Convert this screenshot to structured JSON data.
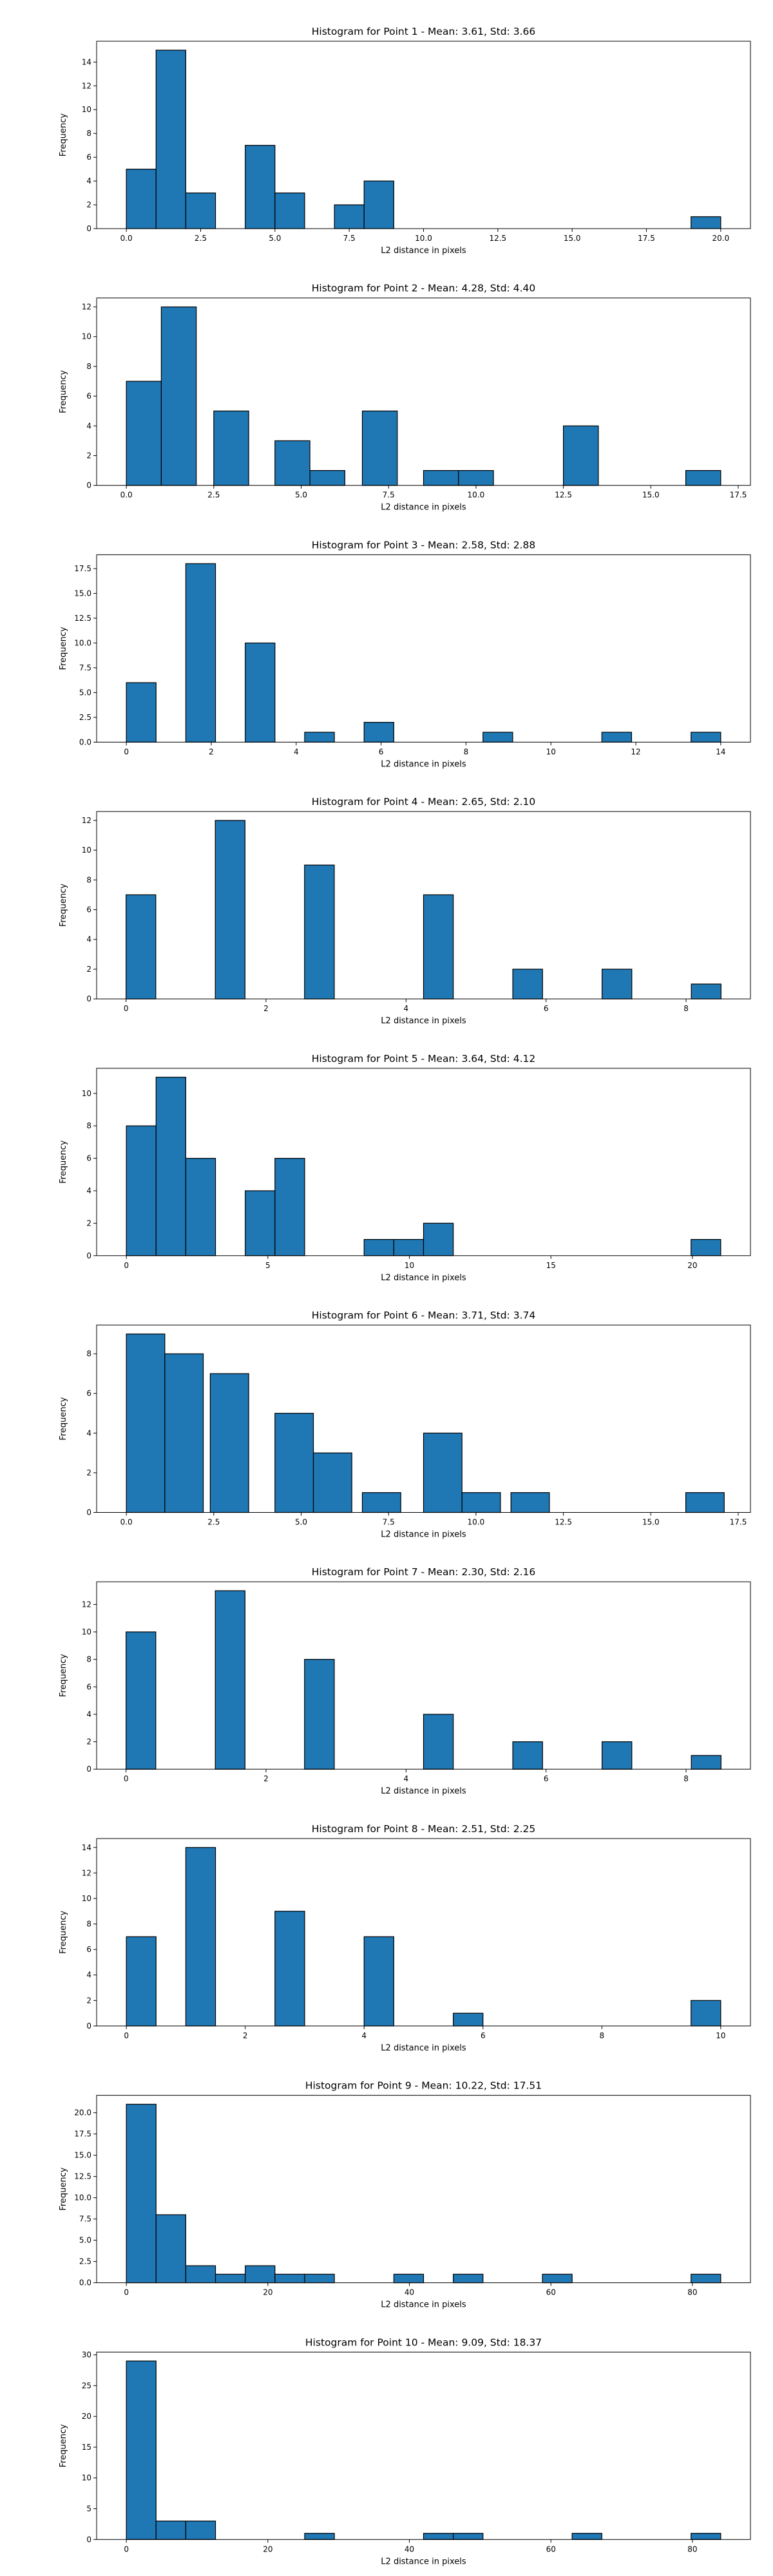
{
  "figure": {
    "bar_color": "#1f77b4",
    "edge_color": "#000000"
  },
  "chart_data": [
    {
      "type": "bar",
      "title": "Histogram for Point 1 - Mean: 3.61, Std: 3.66",
      "xlabel": "L2 distance in pixels",
      "ylabel": "Frequency",
      "xlim": [
        -1,
        21
      ],
      "ylim": [
        0,
        15.75
      ],
      "xticks": [
        0,
        2.5,
        5,
        7.5,
        10,
        12.5,
        15,
        17.5,
        20
      ],
      "xtick_labels": [
        "0.0",
        "2.5",
        "5.0",
        "7.5",
        "10.0",
        "12.5",
        "15.0",
        "17.5",
        "20.0"
      ],
      "yticks": [
        0,
        2,
        4,
        6,
        8,
        10,
        12,
        14
      ],
      "ytick_labels": [
        "0",
        "2",
        "4",
        "6",
        "8",
        "10",
        "12",
        "14"
      ],
      "bins": [
        {
          "x0": 0,
          "x1": 1,
          "count": 5
        },
        {
          "x0": 1,
          "x1": 2,
          "count": 15
        },
        {
          "x0": 2,
          "x1": 3,
          "count": 3
        },
        {
          "x0": 4,
          "x1": 5,
          "count": 7
        },
        {
          "x0": 5,
          "x1": 6,
          "count": 3
        },
        {
          "x0": 7,
          "x1": 8,
          "count": 2
        },
        {
          "x0": 8,
          "x1": 9,
          "count": 4
        },
        {
          "x0": 19,
          "x1": 20,
          "count": 1
        }
      ]
    },
    {
      "type": "bar",
      "title": "Histogram for Point 2 - Mean: 4.28, Std: 4.40",
      "xlabel": "L2 distance in pixels",
      "ylabel": "Frequency",
      "xlim": [
        -0.85,
        17.85
      ],
      "ylim": [
        0,
        12.6
      ],
      "xticks": [
        0,
        2.5,
        5,
        7.5,
        10,
        12.5,
        15,
        17.5
      ],
      "xtick_labels": [
        "0.0",
        "2.5",
        "5.0",
        "7.5",
        "10.0",
        "12.5",
        "15.0",
        "17.5"
      ],
      "yticks": [
        0,
        2,
        4,
        6,
        8,
        10,
        12
      ],
      "ytick_labels": [
        "0",
        "2",
        "4",
        "6",
        "8",
        "10",
        "12"
      ],
      "bins": [
        {
          "x0": 0,
          "x1": 1,
          "count": 7
        },
        {
          "x0": 1,
          "x1": 2,
          "count": 12
        },
        {
          "x0": 2.5,
          "x1": 3.5,
          "count": 5
        },
        {
          "x0": 4.25,
          "x1": 5.25,
          "count": 3
        },
        {
          "x0": 5.25,
          "x1": 6.25,
          "count": 1
        },
        {
          "x0": 6.75,
          "x1": 7.75,
          "count": 5
        },
        {
          "x0": 8.5,
          "x1": 9.5,
          "count": 1
        },
        {
          "x0": 9.5,
          "x1": 10.5,
          "count": 1
        },
        {
          "x0": 12.5,
          "x1": 13.5,
          "count": 4
        },
        {
          "x0": 16,
          "x1": 17,
          "count": 1
        }
      ]
    },
    {
      "type": "bar",
      "title": "Histogram for Point 3 - Mean: 2.58, Std: 2.88",
      "xlabel": "L2 distance in pixels",
      "ylabel": "Frequency",
      "xlim": [
        -0.7,
        14.7
      ],
      "ylim": [
        0,
        18.9
      ],
      "xticks": [
        0,
        2,
        4,
        6,
        8,
        10,
        12,
        14
      ],
      "xtick_labels": [
        "0",
        "2",
        "4",
        "6",
        "8",
        "10",
        "12",
        "14"
      ],
      "yticks": [
        0,
        2.5,
        5,
        7.5,
        10,
        12.5,
        15,
        17.5
      ],
      "ytick_labels": [
        "0.0",
        "2.5",
        "5.0",
        "7.5",
        "10.0",
        "12.5",
        "15.0",
        "17.5"
      ],
      "bins": [
        {
          "x0": 0,
          "x1": 0.7,
          "count": 6
        },
        {
          "x0": 1.4,
          "x1": 2.1,
          "count": 18
        },
        {
          "x0": 2.8,
          "x1": 3.5,
          "count": 10
        },
        {
          "x0": 4.2,
          "x1": 4.9,
          "count": 1
        },
        {
          "x0": 5.6,
          "x1": 6.3,
          "count": 2
        },
        {
          "x0": 8.4,
          "x1": 9.1,
          "count": 1
        },
        {
          "x0": 11.2,
          "x1": 11.9,
          "count": 1
        },
        {
          "x0": 13.3,
          "x1": 14.0,
          "count": 1
        }
      ]
    },
    {
      "type": "bar",
      "title": "Histogram for Point 4 - Mean: 2.65, Std: 2.10",
      "xlabel": "L2 distance in pixels",
      "ylabel": "Frequency",
      "xlim": [
        -0.42,
        8.92
      ],
      "ylim": [
        0,
        12.6
      ],
      "xticks": [
        0,
        2,
        4,
        6,
        8
      ],
      "xtick_labels": [
        "0",
        "2",
        "4",
        "6",
        "8"
      ],
      "yticks": [
        0,
        2,
        4,
        6,
        8,
        10,
        12
      ],
      "ytick_labels": [
        "0",
        "2",
        "4",
        "6",
        "8",
        "10",
        "12"
      ],
      "bins": [
        {
          "x0": 0,
          "x1": 0.425,
          "count": 7
        },
        {
          "x0": 1.275,
          "x1": 1.7,
          "count": 12
        },
        {
          "x0": 2.55,
          "x1": 2.975,
          "count": 9
        },
        {
          "x0": 4.25,
          "x1": 4.675,
          "count": 7
        },
        {
          "x0": 5.525,
          "x1": 5.95,
          "count": 2
        },
        {
          "x0": 6.8,
          "x1": 7.225,
          "count": 2
        },
        {
          "x0": 8.075,
          "x1": 8.5,
          "count": 1
        }
      ]
    },
    {
      "type": "bar",
      "title": "Histogram for Point 5 - Mean: 3.64, Std: 4.12",
      "xlabel": "L2 distance in pixels",
      "ylabel": "Frequency",
      "xlim": [
        -1.05,
        22.05
      ],
      "ylim": [
        0,
        11.55
      ],
      "xticks": [
        0,
        5,
        10,
        15,
        20
      ],
      "xtick_labels": [
        "0",
        "5",
        "10",
        "15",
        "20"
      ],
      "yticks": [
        0,
        2,
        4,
        6,
        8,
        10
      ],
      "ytick_labels": [
        "0",
        "2",
        "4",
        "6",
        "8",
        "10"
      ],
      "bins": [
        {
          "x0": 0,
          "x1": 1.05,
          "count": 8
        },
        {
          "x0": 1.05,
          "x1": 2.1,
          "count": 11
        },
        {
          "x0": 2.1,
          "x1": 3.15,
          "count": 6
        },
        {
          "x0": 4.2,
          "x1": 5.25,
          "count": 4
        },
        {
          "x0": 5.25,
          "x1": 6.3,
          "count": 6
        },
        {
          "x0": 8.4,
          "x1": 9.45,
          "count": 1
        },
        {
          "x0": 9.45,
          "x1": 10.5,
          "count": 1
        },
        {
          "x0": 10.5,
          "x1": 11.55,
          "count": 2
        },
        {
          "x0": 19.95,
          "x1": 21.0,
          "count": 1
        }
      ]
    },
    {
      "type": "bar",
      "title": "Histogram for Point 6 - Mean: 3.71, Std: 3.74",
      "xlabel": "L2 distance in pixels",
      "ylabel": "Frequency",
      "xlim": [
        -0.85,
        17.85
      ],
      "ylim": [
        0,
        9.45
      ],
      "xticks": [
        0,
        2.5,
        5,
        7.5,
        10,
        12.5,
        15,
        17.5
      ],
      "xtick_labels": [
        "0.0",
        "2.5",
        "5.0",
        "7.5",
        "10.0",
        "12.5",
        "15.0",
        "17.5"
      ],
      "yticks": [
        0,
        2,
        4,
        6,
        8
      ],
      "ytick_labels": [
        "0",
        "2",
        "4",
        "6",
        "8"
      ],
      "bins": [
        {
          "x0": 0,
          "x1": 1.1,
          "count": 9
        },
        {
          "x0": 1.1,
          "x1": 2.2,
          "count": 8
        },
        {
          "x0": 2.4,
          "x1": 3.5,
          "count": 7
        },
        {
          "x0": 4.25,
          "x1": 5.35,
          "count": 5
        },
        {
          "x0": 5.35,
          "x1": 6.45,
          "count": 3
        },
        {
          "x0": 6.75,
          "x1": 7.85,
          "count": 1
        },
        {
          "x0": 8.5,
          "x1": 9.6,
          "count": 4
        },
        {
          "x0": 9.6,
          "x1": 10.7,
          "count": 1
        },
        {
          "x0": 11,
          "x1": 12.1,
          "count": 1
        },
        {
          "x0": 16,
          "x1": 17.1,
          "count": 1
        }
      ]
    },
    {
      "type": "bar",
      "title": "Histogram for Point 7 - Mean: 2.30, Std: 2.16",
      "xlabel": "L2 distance in pixels",
      "ylabel": "Frequency",
      "xlim": [
        -0.42,
        8.92
      ],
      "ylim": [
        0,
        13.65
      ],
      "xticks": [
        0,
        2,
        4,
        6,
        8
      ],
      "xtick_labels": [
        "0",
        "2",
        "4",
        "6",
        "8"
      ],
      "yticks": [
        0,
        2,
        4,
        6,
        8,
        10,
        12
      ],
      "ytick_labels": [
        "0",
        "2",
        "4",
        "6",
        "8",
        "10",
        "12"
      ],
      "bins": [
        {
          "x0": 0,
          "x1": 0.425,
          "count": 10
        },
        {
          "x0": 1.275,
          "x1": 1.7,
          "count": 13
        },
        {
          "x0": 2.55,
          "x1": 2.975,
          "count": 8
        },
        {
          "x0": 4.25,
          "x1": 4.675,
          "count": 4
        },
        {
          "x0": 5.525,
          "x1": 5.95,
          "count": 2
        },
        {
          "x0": 6.8,
          "x1": 7.225,
          "count": 2
        },
        {
          "x0": 8.075,
          "x1": 8.5,
          "count": 1
        }
      ]
    },
    {
      "type": "bar",
      "title": "Histogram for Point 8 - Mean: 2.51, Std: 2.25",
      "xlabel": "L2 distance in pixels",
      "ylabel": "Frequency",
      "xlim": [
        -0.5,
        10.5
      ],
      "ylim": [
        0,
        14.7
      ],
      "xticks": [
        0,
        2,
        4,
        6,
        8,
        10
      ],
      "xtick_labels": [
        "0",
        "2",
        "4",
        "6",
        "8",
        "10"
      ],
      "yticks": [
        0,
        2,
        4,
        6,
        8,
        10,
        12,
        14
      ],
      "ytick_labels": [
        "0",
        "2",
        "4",
        "6",
        "8",
        "10",
        "12",
        "14"
      ],
      "bins": [
        {
          "x0": 0,
          "x1": 0.5,
          "count": 7
        },
        {
          "x0": 1.0,
          "x1": 1.5,
          "count": 14
        },
        {
          "x0": 2.5,
          "x1": 3.0,
          "count": 9
        },
        {
          "x0": 4.0,
          "x1": 4.5,
          "count": 7
        },
        {
          "x0": 5.5,
          "x1": 6.0,
          "count": 1
        },
        {
          "x0": 9.5,
          "x1": 10.0,
          "count": 2
        }
      ]
    },
    {
      "type": "bar",
      "title": "Histogram for Point 9 - Mean: 10.22, Std: 17.51",
      "xlabel": "L2 distance in pixels",
      "ylabel": "Frequency",
      "xlim": [
        -4.2,
        88.2
      ],
      "ylim": [
        0,
        22.05
      ],
      "xticks": [
        0,
        20,
        40,
        60,
        80
      ],
      "xtick_labels": [
        "0",
        "20",
        "40",
        "60",
        "80"
      ],
      "yticks": [
        0,
        2.5,
        5,
        7.5,
        10,
        12.5,
        15,
        17.5,
        20
      ],
      "ytick_labels": [
        "0.0",
        "2.5",
        "5.0",
        "7.5",
        "10.0",
        "12.5",
        "15.0",
        "17.5",
        "20.0"
      ],
      "bins": [
        {
          "x0": 0,
          "x1": 4.2,
          "count": 21
        },
        {
          "x0": 4.2,
          "x1": 8.4,
          "count": 8
        },
        {
          "x0": 8.4,
          "x1": 12.6,
          "count": 2
        },
        {
          "x0": 12.6,
          "x1": 16.8,
          "count": 1
        },
        {
          "x0": 16.8,
          "x1": 21.0,
          "count": 2
        },
        {
          "x0": 21.0,
          "x1": 25.2,
          "count": 1
        },
        {
          "x0": 25.2,
          "x1": 29.4,
          "count": 1
        },
        {
          "x0": 37.8,
          "x1": 42.0,
          "count": 1
        },
        {
          "x0": 46.2,
          "x1": 50.4,
          "count": 1
        },
        {
          "x0": 58.8,
          "x1": 63.0,
          "count": 1
        },
        {
          "x0": 79.8,
          "x1": 84.0,
          "count": 1
        }
      ]
    },
    {
      "type": "bar",
      "title": "Histogram for Point 10 - Mean: 9.09, Std: 18.37",
      "xlabel": "L2 distance in pixels",
      "ylabel": "Frequency",
      "xlim": [
        -4.2,
        88.2
      ],
      "ylim": [
        0,
        30.45
      ],
      "xticks": [
        0,
        20,
        40,
        60,
        80
      ],
      "xtick_labels": [
        "0",
        "20",
        "40",
        "60",
        "80"
      ],
      "yticks": [
        0,
        5,
        10,
        15,
        20,
        25,
        30
      ],
      "ytick_labels": [
        "0",
        "5",
        "10",
        "15",
        "20",
        "25",
        "30"
      ],
      "bins": [
        {
          "x0": 0,
          "x1": 4.2,
          "count": 29
        },
        {
          "x0": 4.2,
          "x1": 8.4,
          "count": 3
        },
        {
          "x0": 8.4,
          "x1": 12.6,
          "count": 3
        },
        {
          "x0": 25.2,
          "x1": 29.4,
          "count": 1
        },
        {
          "x0": 42.0,
          "x1": 46.2,
          "count": 1
        },
        {
          "x0": 46.2,
          "x1": 50.4,
          "count": 1
        },
        {
          "x0": 63.0,
          "x1": 67.2,
          "count": 1
        },
        {
          "x0": 79.8,
          "x1": 84.0,
          "count": 1
        }
      ]
    }
  ]
}
